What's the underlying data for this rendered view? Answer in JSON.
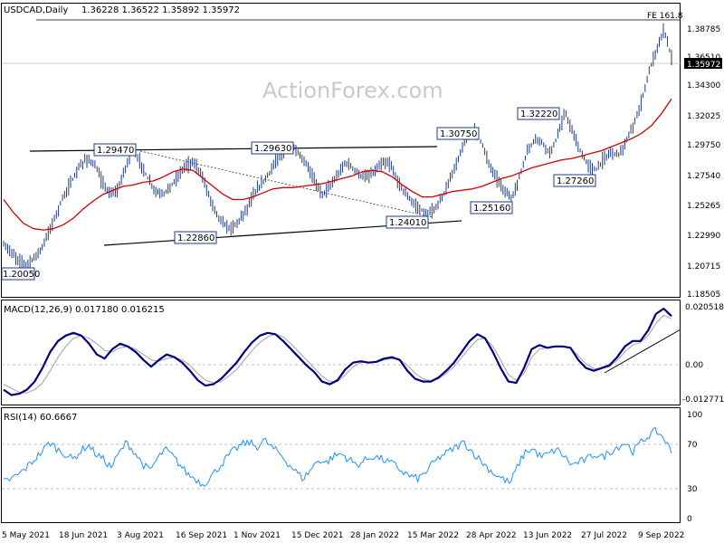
{
  "header": {
    "symbol": "USDCAD,Daily",
    "ohlc": "1.36228 1.36522 1.35892 1.35972"
  },
  "watermark": "ActionForex.com",
  "fib_label": "FE 161.8",
  "macd": {
    "label": "MACD(12,26,9) 0.017180 0.016215"
  },
  "rsi": {
    "label": "RSI(14) 60.6667"
  },
  "colors": {
    "price": "#1f3a8a",
    "ma": "#d40000",
    "macd_main": "#000080",
    "macd_signal": "#a0a0a0",
    "rsi_line": "#1e90ff",
    "badge_border": "#1f3a8a",
    "current_price_bg": "#000000"
  },
  "chart_data": [
    {
      "type": "line",
      "panel": "price",
      "title": "USDCAD,Daily",
      "ylim": [
        1.1785,
        1.4
      ],
      "y_ticks": [
        "1.38785",
        "1.36510",
        "1.34300",
        "1.32025",
        "1.29750",
        "1.27540",
        "1.25265",
        "1.22990",
        "1.20715",
        "1.18505"
      ],
      "current_price": "1.35972",
      "x_ticks": [
        "5 May 2021",
        "18 Jun 2021",
        "3 Aug 2021",
        "16 Sep 2021",
        "1 Nov 2021",
        "15 Dec 2021",
        "28 Jan 2022",
        "15 Mar 2022",
        "28 Apr 2022",
        "13 Jun 2022",
        "27 Jul 2022",
        "9 Sep 2022"
      ],
      "series": [
        {
          "values": [
            1.218,
            1.212,
            1.206,
            1.203,
            1.208,
            1.215,
            1.228,
            1.242,
            1.256,
            1.266,
            1.277,
            1.283,
            1.278,
            1.265,
            1.256,
            1.259,
            1.275,
            1.29,
            1.28,
            1.268,
            1.258,
            1.256,
            1.262,
            1.27,
            1.278,
            1.28,
            1.272,
            1.256,
            1.242,
            1.233,
            1.23,
            1.236,
            1.245,
            1.256,
            1.264,
            1.272,
            1.282,
            1.287,
            1.293,
            1.285,
            1.278,
            1.266,
            1.256,
            1.262,
            1.27,
            1.28,
            1.276,
            1.27,
            1.269,
            1.274,
            1.28,
            1.278,
            1.265,
            1.256,
            1.249,
            1.244,
            1.241,
            1.246,
            1.256,
            1.27,
            1.284,
            1.298,
            1.305,
            1.295,
            1.278,
            1.268,
            1.258,
            1.253,
            1.27,
            1.288,
            1.298,
            1.295,
            1.287,
            1.3,
            1.318,
            1.302,
            1.288,
            1.278,
            1.274,
            1.282,
            1.288,
            1.286,
            1.295,
            1.308,
            1.325,
            1.348,
            1.365,
            1.38,
            1.3597
          ]
        },
        {
          "values": [
            1.252,
            1.242,
            1.234,
            1.23,
            1.229,
            1.23,
            1.233,
            1.238,
            1.245,
            1.251,
            1.256,
            1.259,
            1.262,
            1.263,
            1.265,
            1.266,
            1.269,
            1.273,
            1.275,
            1.274,
            1.268,
            1.262,
            1.256,
            1.252,
            1.252,
            1.254,
            1.257,
            1.26,
            1.261,
            1.261,
            1.262,
            1.263,
            1.264,
            1.266,
            1.268,
            1.27,
            1.273,
            1.274,
            1.273,
            1.269,
            1.263,
            1.258,
            1.254,
            1.254,
            1.256,
            1.258,
            1.259,
            1.26,
            1.262,
            1.265,
            1.268,
            1.27,
            1.273,
            1.276,
            1.278,
            1.28,
            1.282,
            1.283,
            1.285,
            1.287,
            1.289,
            1.292,
            1.295,
            1.298,
            1.302,
            1.308,
            1.317,
            1.328
          ]
        }
      ],
      "annotations": [
        "1.29470",
        "1.29630",
        "1.30750",
        "1.32220",
        "1.22860",
        "1.24010",
        "1.25160",
        "1.27260",
        "1.20050"
      ]
    },
    {
      "type": "line",
      "panel": "macd",
      "ylim": [
        -0.0155,
        0.023
      ],
      "y_ticks": [
        "0.020518",
        "0.00",
        "-0.012771"
      ],
      "series": [
        {
          "values": [
            -0.01,
            -0.012,
            -0.0115,
            -0.01,
            -0.007,
            -0.002,
            0.004,
            0.008,
            0.01,
            0.011,
            0.01,
            0.007,
            0.003,
            0.0015,
            0.005,
            0.007,
            0.006,
            0.004,
            0.001,
            -0.0015,
            0.001,
            0.003,
            0.002,
            0.0,
            -0.003,
            -0.0065,
            -0.0085,
            -0.008,
            -0.006,
            -0.003,
            0.0,
            0.004,
            0.0075,
            0.01,
            0.011,
            0.0105,
            0.008,
            0.005,
            0.002,
            -0.001,
            -0.0035,
            -0.007,
            -0.008,
            -0.0065,
            -0.0025,
            0.0,
            0.0005,
            0.0,
            0.0003,
            0.0015,
            0.002,
            0.001,
            -0.003,
            -0.006,
            -0.007,
            -0.007,
            -0.0055,
            -0.003,
            0.0,
            0.004,
            0.008,
            0.0105,
            0.009,
            0.004,
            -0.002,
            -0.007,
            -0.0075,
            -0.002,
            0.005,
            0.0065,
            0.0055,
            0.006,
            0.006,
            0.0055,
            0.001,
            -0.002,
            -0.003,
            -0.002,
            -0.001,
            0.002,
            0.006,
            0.008,
            0.008,
            0.012,
            0.018,
            0.02,
            0.0172
          ]
        },
        {
          "values": [
            -0.008,
            -0.0095,
            -0.011,
            -0.0112,
            -0.01,
            -0.0075,
            -0.003,
            0.002,
            0.006,
            0.009,
            0.01,
            0.009,
            0.007,
            0.0045,
            0.004,
            0.0055,
            0.006,
            0.005,
            0.003,
            0.001,
            0.0005,
            0.0015,
            0.002,
            0.001,
            -0.001,
            -0.004,
            -0.0065,
            -0.0075,
            -0.007,
            -0.005,
            -0.0025,
            0.001,
            0.0045,
            0.0075,
            0.0095,
            0.0105,
            0.0095,
            0.007,
            0.004,
            0.001,
            -0.002,
            -0.005,
            -0.007,
            -0.007,
            -0.0045,
            -0.0015,
            0.0,
            0.0002,
            0.0002,
            0.001,
            0.0015,
            0.0012,
            -0.001,
            -0.004,
            -0.006,
            -0.0068,
            -0.006,
            -0.004,
            -0.0015,
            0.002,
            0.0055,
            0.0085,
            0.009,
            0.006,
            0.001,
            -0.0045,
            -0.0065,
            -0.004,
            0.002,
            0.005,
            0.0055,
            0.0058,
            0.0058,
            0.0055,
            0.0025,
            -0.0005,
            -0.0022,
            -0.0022,
            -0.0015,
            0.0008,
            0.004,
            0.0065,
            0.0075,
            0.01,
            0.0145,
            0.0175,
            0.0162
          ]
        }
      ]
    },
    {
      "type": "line",
      "panel": "rsi",
      "ylim": [
        0,
        100
      ],
      "y_ticks": [
        "100",
        "70",
        "30",
        "0"
      ],
      "series": [
        {
          "values": [
            35,
            38,
            42,
            48,
            55,
            62,
            70,
            64,
            60,
            55,
            62,
            68,
            60,
            55,
            48,
            60,
            70,
            62,
            52,
            45,
            55,
            64,
            58,
            50,
            42,
            38,
            33,
            40,
            48,
            56,
            63,
            68,
            70,
            66,
            72,
            65,
            60,
            52,
            45,
            38,
            46,
            55,
            52,
            58,
            60,
            55,
            50,
            54,
            58,
            56,
            53,
            50,
            44,
            40,
            38,
            44,
            52,
            58,
            62,
            66,
            70,
            62,
            55,
            48,
            42,
            38,
            34,
            50,
            62,
            64,
            57,
            60,
            64,
            58,
            50,
            53,
            55,
            60,
            57,
            62,
            66,
            70,
            62,
            70,
            76,
            80,
            74,
            61
          ]
        }
      ]
    }
  ]
}
